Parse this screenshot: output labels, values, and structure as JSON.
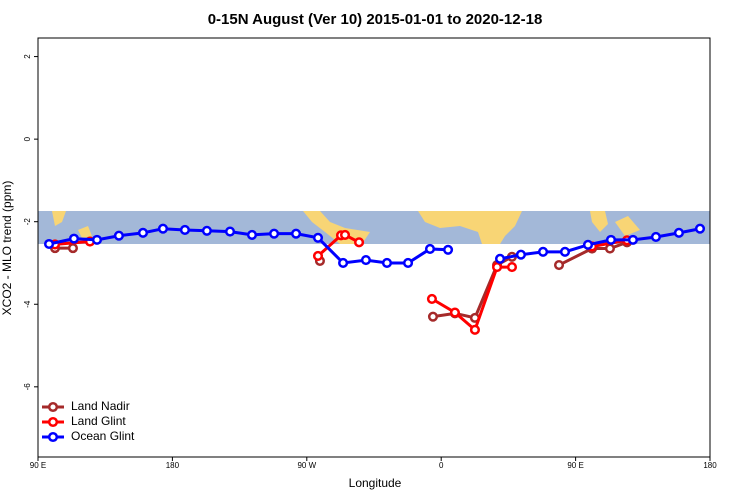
{
  "chart_data": {
    "type": "line",
    "title": "0-15N August (Ver 10)   2015-01-01 to 2020-12-18",
    "x_label": "Longitude",
    "y_label": "XCO2 - MLO trend (ppm)",
    "xlim": [
      90,
      540
    ],
    "ylim": [
      -7.7,
      2.45
    ],
    "xticks": [
      {
        "value": 90,
        "label": "90 E"
      },
      180,
      {
        "value": 270,
        "label": "90 W"
      },
      {
        "value": 360,
        "label": "0"
      },
      {
        "value": 450,
        "label": "90 E"
      },
      {
        "value": 540,
        "label": "180"
      }
    ],
    "yticks": [
      2,
      0,
      -2,
      -4,
      -6
    ],
    "legend": "bottom-left",
    "series": [
      {
        "name": "Land Nadir",
        "color": "#a52a2a",
        "x": [
          101.4,
          113.4,
          null,
          278.8,
          null,
          354.5,
          369.2,
          382.6,
          397.4,
          407.4,
          null,
          438.9,
          461,
          473,
          484.4
        ],
        "values": [
          -2.64,
          -2.64,
          null,
          -2.95,
          null,
          -4.3,
          -4.22,
          -4.33,
          -3.05,
          -2.85,
          null,
          -3.05,
          -2.65,
          -2.65,
          -2.5
        ]
      },
      {
        "name": "Land Glint",
        "color": "#ff0000",
        "x": [
          101.4,
          124.8,
          null,
          277.5,
          292.9,
          295.6,
          305,
          null,
          353.8,
          369.2,
          382.6,
          397.4,
          407.4,
          null,
          461,
          484.4
        ],
        "values": [
          -2.55,
          -2.48,
          null,
          -2.83,
          -2.33,
          -2.32,
          -2.5,
          null,
          -3.87,
          -4.2,
          -4.62,
          -3.1,
          -3.1,
          null,
          -2.6,
          -2.45
        ]
      },
      {
        "name": "Ocean Glint",
        "color": "#0000ff",
        "x": [
          97.4,
          114.1,
          129.5,
          144.2,
          160.3,
          173.7,
          188.4,
          203.1,
          218.6,
          233.3,
          248.1,
          262.8,
          277.5,
          294.3,
          309.6,
          323.7,
          337.8,
          352.5,
          364.6,
          null,
          399.4,
          413.4,
          428.2,
          442.9,
          458.3,
          473.7,
          488.4,
          503.8,
          519.2,
          533.3
        ],
        "values": [
          -2.54,
          -2.41,
          -2.44,
          -2.34,
          -2.27,
          -2.17,
          -2.2,
          -2.22,
          -2.24,
          -2.32,
          -2.29,
          -2.29,
          -2.39,
          -3.0,
          -2.93,
          -3.0,
          -3.0,
          -2.66,
          -2.68,
          null,
          -2.9,
          -2.8,
          -2.73,
          -2.73,
          -2.56,
          -2.44,
          -2.44,
          -2.37,
          -2.27,
          -2.17
        ]
      }
    ]
  }
}
